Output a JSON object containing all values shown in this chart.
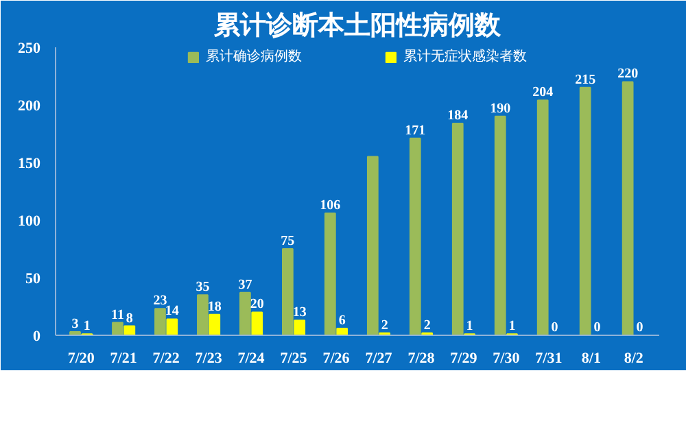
{
  "chart_data": {
    "type": "bar",
    "title": "累计诊断本土阳性病例数",
    "categories": [
      "7/20",
      "7/21",
      "7/22",
      "7/23",
      "7/24",
      "7/25",
      "7/26",
      "7/27",
      "7/28",
      "7/29",
      "7/30",
      "7/31",
      "8/1",
      "8/2"
    ],
    "series": [
      {
        "name": "累计确诊病例数",
        "color": "#9bbb59",
        "values": [
          3,
          11,
          23,
          35,
          37,
          75,
          106,
          155,
          171,
          184,
          190,
          204,
          215,
          220
        ],
        "value_labels": [
          "3",
          "11",
          "23",
          "35",
          "37",
          "75",
          "106",
          null,
          "171",
          "184",
          "190",
          "204",
          "215",
          "220"
        ]
      },
      {
        "name": "累计无症状感染者数",
        "color": "#ffff00",
        "values": [
          1,
          8,
          14,
          18,
          20,
          13,
          6,
          2,
          2,
          1,
          1,
          0,
          0,
          0
        ],
        "value_labels": [
          "1",
          "8",
          "14",
          "18",
          "20",
          "13",
          "6",
          "2",
          "2",
          "1",
          "1",
          "0",
          "0",
          "0"
        ]
      }
    ],
    "ylim": [
      0,
      250
    ],
    "yticks": [
      0,
      50,
      100,
      150,
      200,
      250
    ],
    "grid": false,
    "legend": "top"
  }
}
